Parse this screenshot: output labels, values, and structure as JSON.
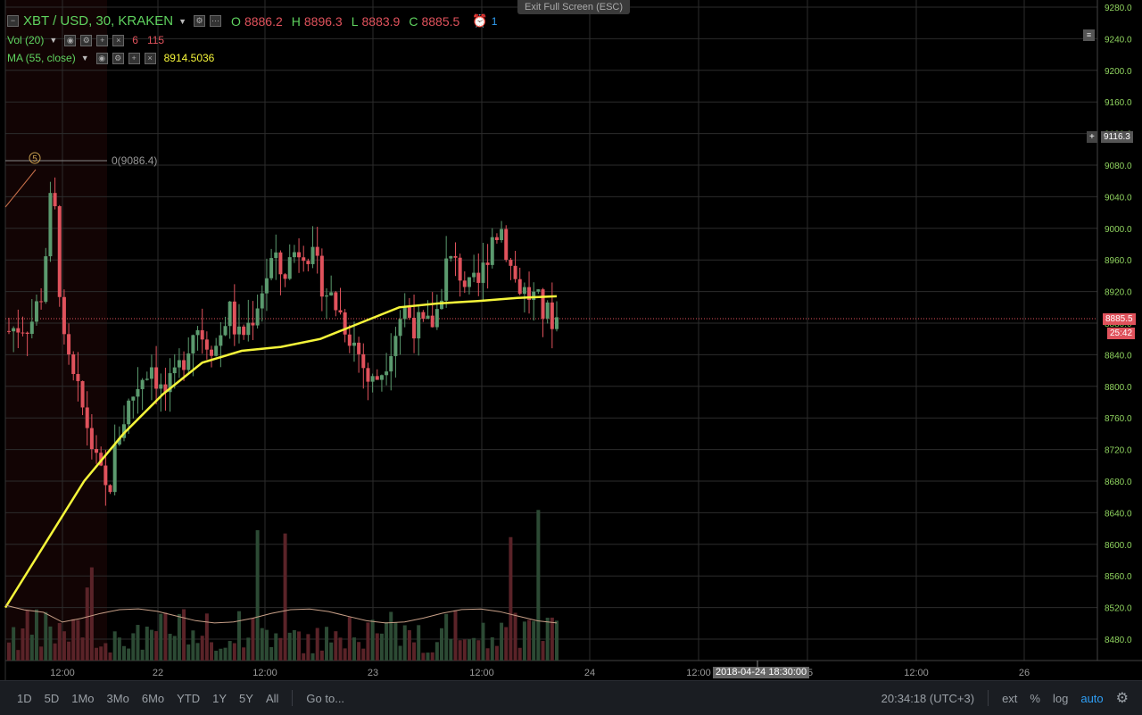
{
  "window": {
    "fullscreen_exit_label": "Exit Full Screen (ESC)"
  },
  "legend": {
    "symbol": "XBT / USD, 30, KRAKEN",
    "ohlc": {
      "o_label": "O",
      "o": "8886.2",
      "h_label": "H",
      "h": "8896.3",
      "l_label": "L",
      "l": "8883.9",
      "c_label": "C",
      "c": "8885.5"
    },
    "alert_count": "1",
    "volume": {
      "label": "Vol (20)",
      "value1": "6",
      "value2": "115"
    },
    "ma": {
      "label": "MA (55, close)",
      "value": "8914.5036"
    }
  },
  "price_axis": {
    "ticks": [
      "9280.0",
      "9240.0",
      "9200.0",
      "9160.0",
      "9120.0",
      "9080.0",
      "9040.0",
      "9000.0",
      "8960.0",
      "8920.0",
      "8880.0",
      "8840.0",
      "8800.0",
      "8760.0",
      "8720.0",
      "8680.0",
      "8640.0",
      "8600.0",
      "8560.0",
      "8520.0",
      "8480.0"
    ],
    "crosshair_price": "9116.3",
    "last_price": "8885.5",
    "countdown": "25:42"
  },
  "time_axis": {
    "labels": [
      "12:00",
      "22",
      "12:00",
      "23",
      "12:00",
      "24",
      "12:00",
      "25",
      "12:00",
      "26"
    ],
    "crosshair_time": "2018-04-24 18:30:00"
  },
  "annotation": {
    "marker": "5",
    "text": "0(9086.4)"
  },
  "bottom_bar": {
    "ranges": [
      "1D",
      "5D",
      "1Mo",
      "3Mo",
      "6Mo",
      "YTD",
      "1Y",
      "5Y",
      "All"
    ],
    "goto": "Go to...",
    "clock": "20:34:18 (UTC+3)",
    "options": [
      "ext",
      "%",
      "log",
      "auto"
    ]
  },
  "colors": {
    "up": "#5b9a6e",
    "down": "#e0525c",
    "ma": "#f5f53a",
    "grid": "#2c2c2c",
    "axis_text": "#8fd35f",
    "last_price_bg": "#e0525c"
  },
  "chart_data": {
    "type": "candlestick",
    "series": [
      {
        "name": "XBT / USD",
        "ohlc_close_approx": [
          8870,
          8878,
          8880,
          8920,
          9060,
          8850,
          8800,
          8760,
          8700,
          8660,
          8740,
          8780,
          8810,
          8830,
          8790,
          8800,
          8840,
          8880,
          8860,
          8850,
          8900,
          8860,
          8880,
          8920,
          8960,
          8940,
          8970,
          8980,
          8950,
          8920,
          8900,
          8870,
          8840,
          8800,
          8820,
          8860,
          8900,
          8880,
          8870,
          8890,
          8960,
          8950,
          8920,
          8930,
          8990,
          9000,
          8940,
          8920,
          8910,
          8890,
          8886
        ]
      },
      {
        "name": "MA (55, close)",
        "values_approx": [
          8520,
          8600,
          8680,
          8740,
          8790,
          8830,
          8845,
          8850,
          8860,
          8880,
          8900,
          8905,
          8908,
          8912,
          8914
        ]
      }
    ],
    "ylim": [
      8460,
      9290
    ],
    "x_labels": [
      "12:00",
      "22",
      "12:00",
      "23",
      "12:00",
      "24",
      "12:00",
      "25",
      "12:00",
      "26"
    ]
  }
}
